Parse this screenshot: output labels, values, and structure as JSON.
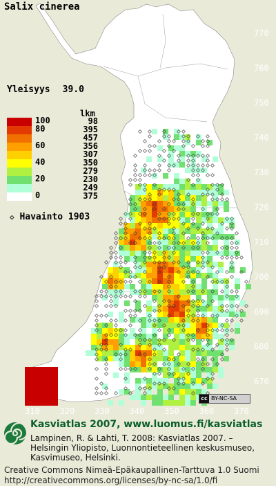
{
  "title": "Salix cinerea",
  "yleisyys": {
    "label": "Yleisyys",
    "value": "39.0"
  },
  "legend": {
    "count_header": "lkm",
    "classes": [
      {
        "label": "100",
        "count": "98",
        "color": "#c80000"
      },
      {
        "label": "80",
        "count": "395",
        "color": "#e23a00"
      },
      {
        "label": "",
        "count": "457",
        "color": "#f07000"
      },
      {
        "label": "60",
        "count": "356",
        "color": "#ffa000"
      },
      {
        "label": "",
        "count": "307",
        "color": "#ffd000"
      },
      {
        "label": "40",
        "count": "350",
        "color": "#ffff00"
      },
      {
        "label": "",
        "count": "279",
        "color": "#b0f040"
      },
      {
        "label": "20",
        "count": "230",
        "color": "#70e070"
      },
      {
        "label": "",
        "count": "249",
        "color": "#b0ffd8"
      },
      {
        "label": "0",
        "count": "375",
        "color": "#ffffff"
      }
    ],
    "observation": {
      "label": "Havainto",
      "year": "1903"
    }
  },
  "y_ticks": [
    "770",
    "760",
    "750",
    "740",
    "730",
    "720",
    "710",
    "700",
    "690",
    "680",
    "670"
  ],
  "x_ticks": [
    "310",
    "320",
    "330",
    "340",
    "350",
    "360",
    "370"
  ],
  "license_badge": "BY-NC-SA",
  "footer": {
    "line1": "Kasviatlas 2007, www.luomus.fi/kasviatlas",
    "line2": "Lampinen, R. & Lahti, T. 2008: Kasviatlas 2007. –",
    "line3": "Helsingin Yliopisto, Luonnontieteellinen keskusmuseo,",
    "line4": "Kasvimuseo, Helsinki."
  },
  "license": {
    "line1": "Creative Commons Nimeä-Epäkaupallinen-Tarttuva 1.0 Suomi",
    "line2": "http://creativecommons.org/licenses/by-nc-sa/1.0/fi"
  }
}
